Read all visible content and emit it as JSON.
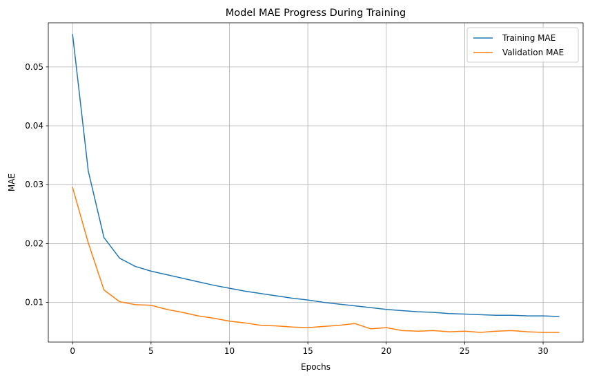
{
  "chart_data": {
    "type": "line",
    "title": "Model MAE Progress During Training",
    "xlabel": "Epochs",
    "ylabel": "MAE",
    "xlim": [
      -1.55,
      32.55
    ],
    "ylim": [
      0.00325,
      0.0575
    ],
    "xticks": [
      0,
      5,
      10,
      15,
      20,
      25,
      30
    ],
    "yticks": [
      0.01,
      0.02,
      0.03,
      0.04,
      0.05
    ],
    "ytick_labels": [
      "0.01",
      "0.02",
      "0.03",
      "0.04",
      "0.05"
    ],
    "grid": true,
    "legend_position": "top-right",
    "x": [
      0,
      1,
      2,
      3,
      4,
      5,
      6,
      7,
      8,
      9,
      10,
      11,
      12,
      13,
      14,
      15,
      16,
      17,
      18,
      19,
      20,
      21,
      22,
      23,
      24,
      25,
      26,
      27,
      28,
      29,
      30,
      31
    ],
    "series": [
      {
        "name": "Training MAE",
        "color": "#1f77b4",
        "values": [
          0.0555,
          0.0323,
          0.021,
          0.0175,
          0.0161,
          0.0153,
          0.0147,
          0.0141,
          0.0135,
          0.0129,
          0.0124,
          0.0119,
          0.0115,
          0.0111,
          0.0107,
          0.0104,
          0.01,
          0.0097,
          0.0094,
          0.0091,
          0.0088,
          0.0086,
          0.0084,
          0.0083,
          0.0081,
          0.008,
          0.0079,
          0.0078,
          0.0078,
          0.0077,
          0.0077,
          0.0076
        ]
      },
      {
        "name": "Validation MAE",
        "color": "#ff7f0e",
        "values": [
          0.0295,
          0.0201,
          0.0121,
          0.0101,
          0.0096,
          0.0095,
          0.0088,
          0.0083,
          0.0077,
          0.0073,
          0.0068,
          0.0065,
          0.0061,
          0.006,
          0.0058,
          0.0057,
          0.0059,
          0.0061,
          0.0064,
          0.0055,
          0.0057,
          0.0052,
          0.0051,
          0.0052,
          0.005,
          0.0051,
          0.0049,
          0.0051,
          0.0052,
          0.005,
          0.0049,
          0.0049
        ]
      }
    ]
  }
}
